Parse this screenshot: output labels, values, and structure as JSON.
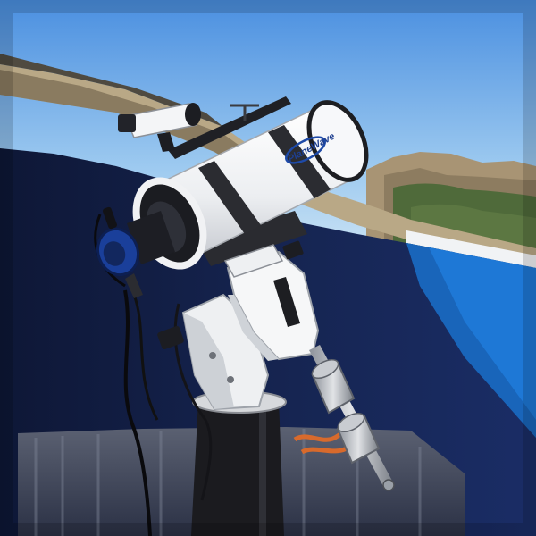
{
  "scene": {
    "subject": "telescope",
    "logo_text": "PlaneWave",
    "colors": {
      "sky_top": "#4a8fe0",
      "sky_bottom": "#cfe6f5",
      "dome_dark": "#142042",
      "dome_mid": "#1d2f63",
      "dome_blue": "#1e78d6",
      "tube_white": "#f4f5f7",
      "mount_white": "#eef0f2",
      "pier_black": "#1b1b1f",
      "hill": "#a89474",
      "scrub": "#4f6a3a",
      "cable_orange": "#d86a2c"
    }
  }
}
